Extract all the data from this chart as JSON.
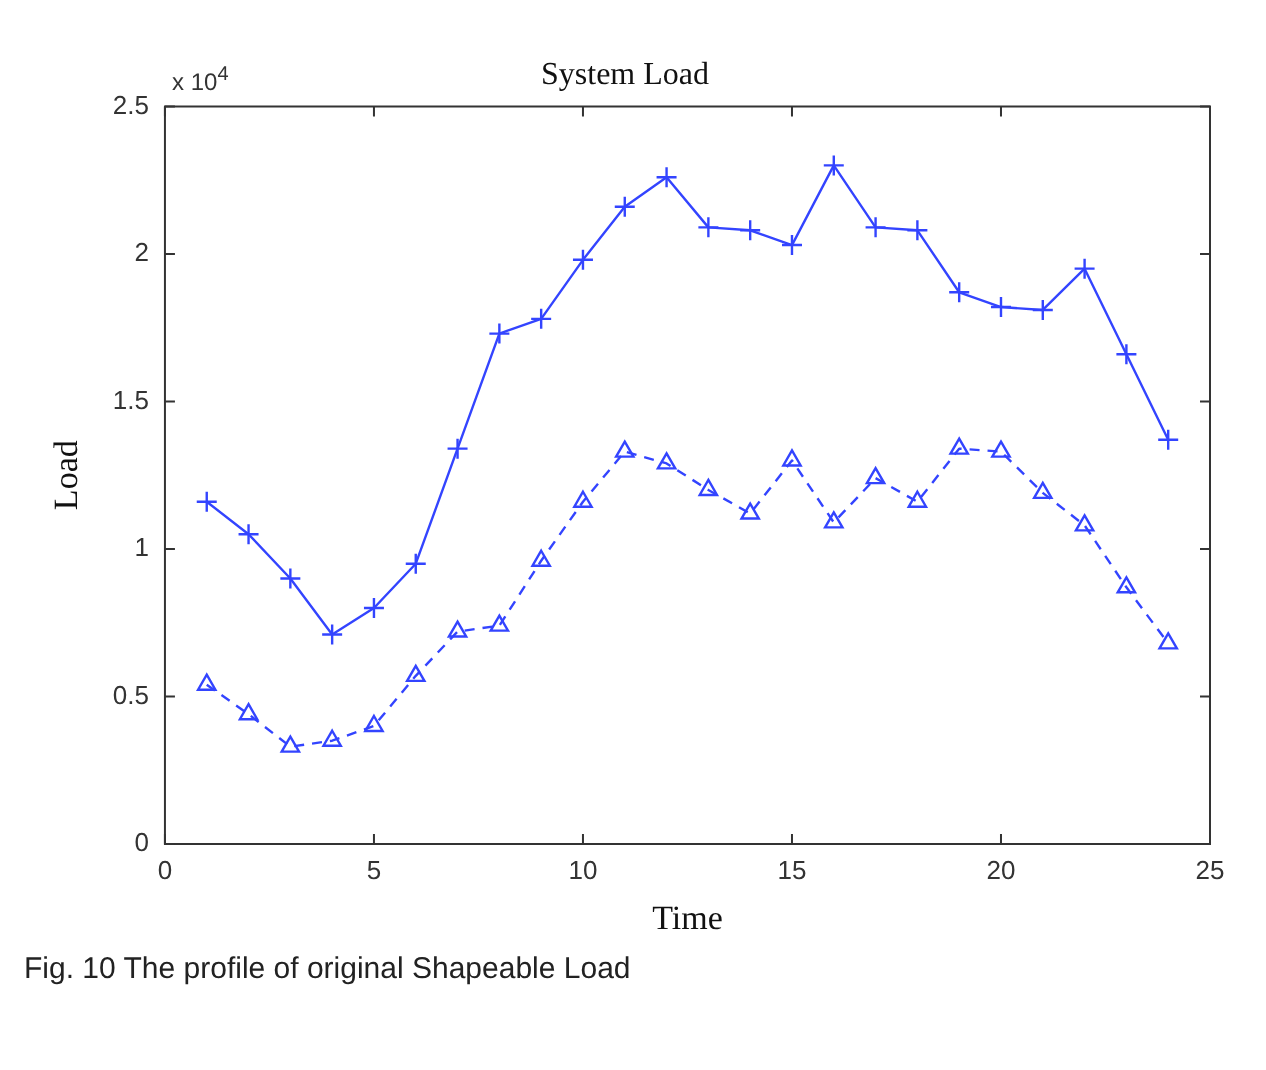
{
  "chart_data": {
    "type": "line",
    "title": "System Load",
    "xlabel": "Time",
    "ylabel": "Load",
    "x": [
      1,
      2,
      3,
      4,
      5,
      6,
      7,
      8,
      9,
      10,
      11,
      12,
      13,
      14,
      15,
      16,
      17,
      18,
      19,
      20,
      21,
      22,
      23,
      24
    ],
    "series": [
      {
        "color": "#3344ff",
        "marker": "cross",
        "line_style": "solid",
        "values": [
          1.16,
          1.05,
          0.9,
          0.71,
          0.8,
          0.95,
          1.34,
          1.73,
          1.78,
          1.98,
          2.16,
          2.26,
          2.09,
          2.08,
          2.03,
          2.3,
          2.09,
          2.08,
          1.87,
          1.82,
          1.81,
          1.95,
          1.66,
          1.37
        ]
      },
      {
        "color": "#3344ff",
        "marker": "triangle",
        "line_style": "dashed",
        "values": [
          0.54,
          0.44,
          0.33,
          0.35,
          0.4,
          0.57,
          0.72,
          0.74,
          0.96,
          1.16,
          1.33,
          1.29,
          1.2,
          1.12,
          1.3,
          1.09,
          1.24,
          1.16,
          1.34,
          1.33,
          1.19,
          1.08,
          0.87,
          0.68
        ]
      }
    ],
    "xlim": [
      0,
      25
    ],
    "xticks": [
      0,
      5,
      10,
      15,
      20,
      25
    ],
    "ylim": [
      0,
      2.5
    ],
    "yticks": [
      0,
      0.5,
      1,
      1.5,
      2,
      2.5
    ],
    "grid": false,
    "legend": false,
    "annotations": [
      "x 10$^{4}$",
      "Fig. 10 The profile of original Shapeable Load"
    ]
  }
}
